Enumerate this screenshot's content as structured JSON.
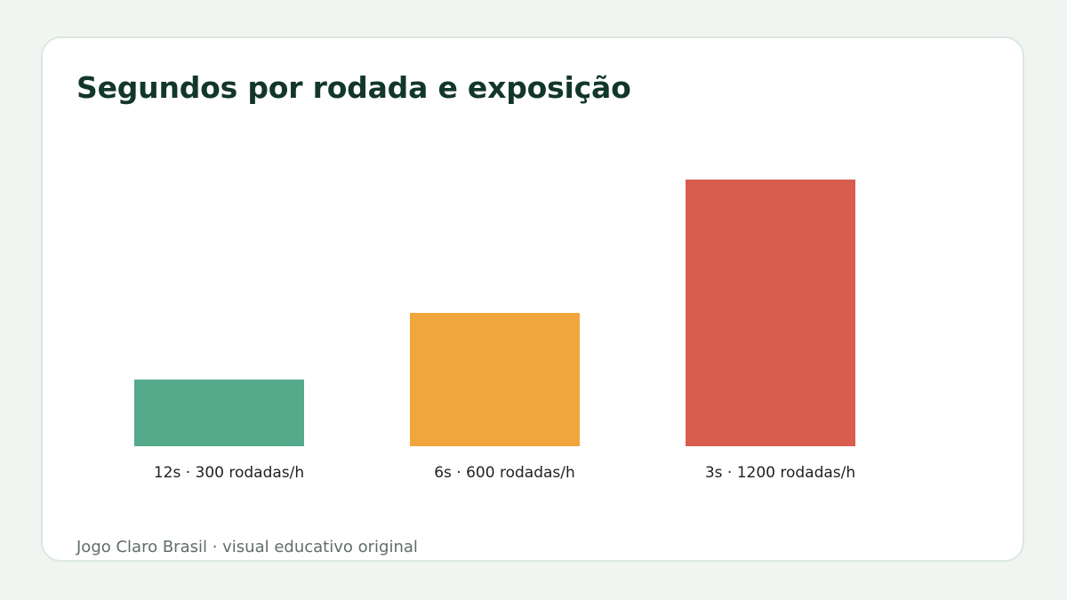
{
  "chart_data": {
    "type": "bar",
    "title": "Segundos por rodada e exposição",
    "categories": [
      "12s · 300 rodadas/h",
      "6s · 600 rodadas/h",
      "3s · 1200 rodadas/h"
    ],
    "values": [
      300,
      600,
      1200
    ],
    "colors": [
      "#54aa8a",
      "#f0a63d",
      "#d95d4f"
    ],
    "xlabel": "",
    "ylabel": "",
    "ylim": [
      0,
      1200
    ],
    "grid": false,
    "legend": "none"
  },
  "footer": "Jogo Claro Brasil · visual educativo original"
}
